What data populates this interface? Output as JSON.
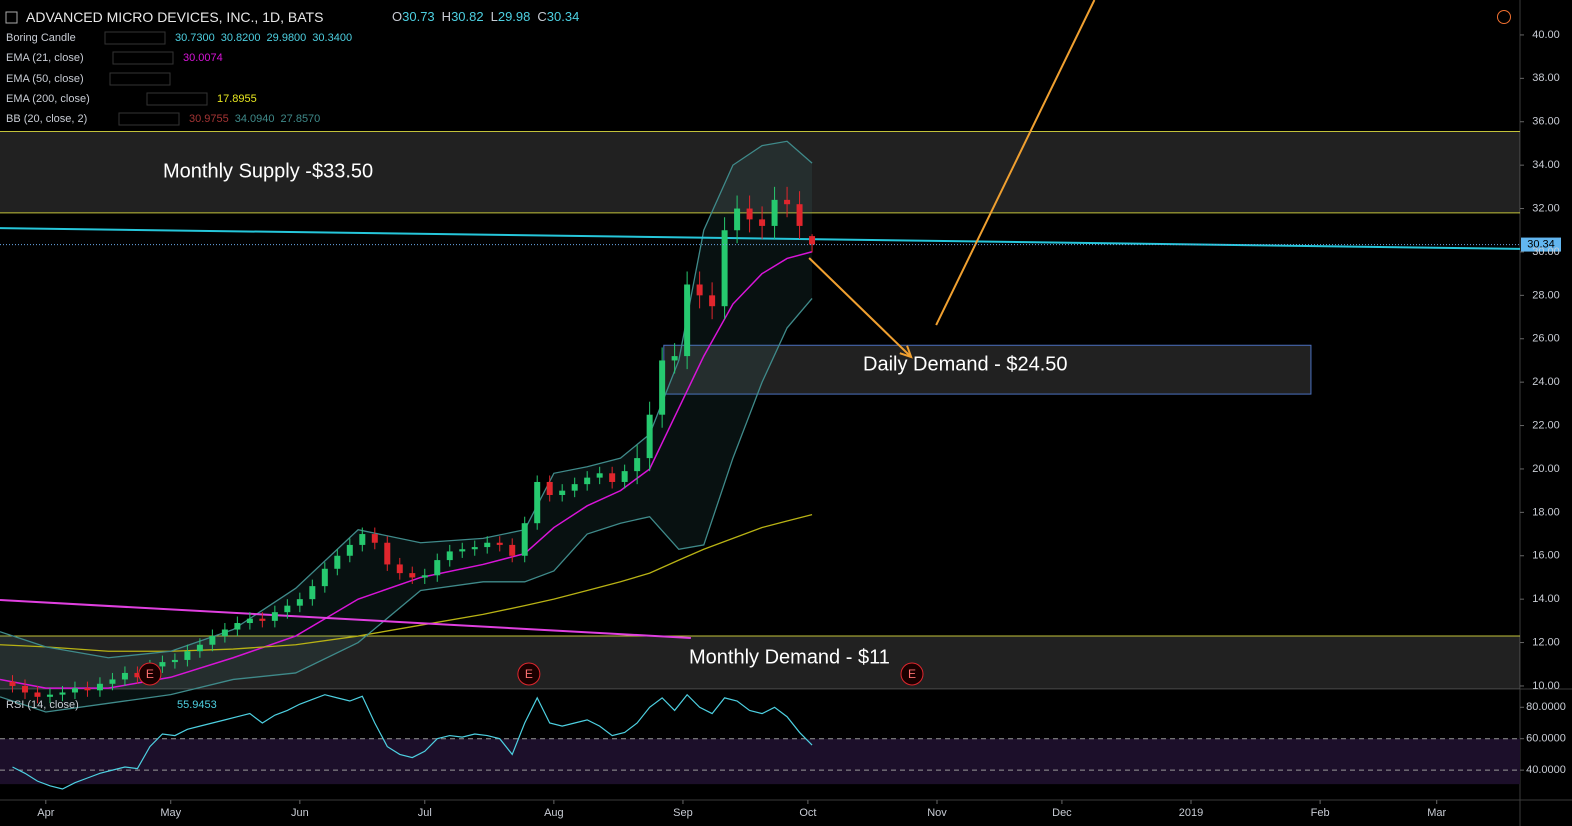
{
  "chart_data": {
    "type": "candlestick",
    "title": "ADVANCED MICRO DEVICES, INC., 1D, BATS",
    "ohlc_labels": [
      "O",
      "H",
      "L",
      "C"
    ],
    "x": [
      -8,
      -5,
      -2,
      1,
      4,
      7,
      10,
      13,
      16,
      19,
      22,
      25,
      28,
      31,
      34,
      37,
      40,
      43,
      46,
      49,
      52,
      55,
      58,
      61,
      64,
      67,
      70,
      73,
      76,
      79,
      82,
      85,
      88,
      91,
      94,
      97,
      100,
      103,
      106,
      109,
      112,
      115,
      118,
      121,
      124,
      127,
      130,
      133,
      136,
      139,
      142,
      145,
      148,
      151,
      154,
      157,
      160,
      163,
      166,
      169,
      172,
      175,
      178,
      181,
      184
    ],
    "open": [
      10.2,
      10.0,
      9.7,
      9.5,
      9.6,
      9.7,
      9.9,
      9.8,
      10.1,
      10.3,
      10.6,
      10.4,
      10.9,
      11.1,
      11.2,
      11.6,
      11.9,
      12.3,
      12.6,
      12.9,
      13.1,
      13.0,
      13.4,
      13.7,
      14.0,
      14.6,
      15.4,
      16.0,
      16.5,
      17.0,
      16.6,
      15.6,
      15.2,
      15.0,
      15.1,
      15.8,
      16.2,
      16.3,
      16.4,
      16.6,
      16.5,
      16.0,
      17.5,
      19.4,
      18.8,
      19.0,
      19.3,
      19.6,
      19.8,
      19.4,
      19.9,
      20.5,
      22.5,
      25.0,
      25.2,
      28.5,
      28.0,
      27.5,
      31.0,
      32.0,
      31.5,
      31.2,
      32.4,
      32.2,
      30.73
    ],
    "high": [
      10.5,
      10.3,
      10.0,
      9.9,
      10.0,
      10.2,
      10.2,
      10.4,
      10.6,
      10.9,
      10.9,
      11.2,
      11.4,
      11.5,
      11.9,
      12.2,
      12.6,
      12.9,
      13.2,
      13.4,
      13.4,
      13.7,
      14.0,
      14.3,
      14.9,
      15.7,
      16.3,
      16.8,
      17.3,
      17.3,
      16.9,
      15.9,
      15.5,
      15.4,
      16.1,
      16.5,
      16.6,
      16.7,
      16.9,
      16.9,
      16.8,
      17.8,
      19.7,
      19.7,
      19.3,
      19.6,
      19.9,
      20.1,
      20.1,
      20.2,
      21.1,
      23.1,
      25.6,
      25.8,
      29.1,
      29.1,
      28.6,
      31.6,
      32.6,
      32.6,
      32.1,
      33.0,
      33.0,
      32.8,
      30.82
    ],
    "low": [
      9.7,
      9.4,
      9.2,
      9.2,
      9.3,
      9.4,
      9.5,
      9.5,
      9.8,
      10.0,
      10.1,
      10.1,
      10.6,
      10.8,
      10.9,
      11.3,
      11.6,
      12.0,
      12.3,
      12.6,
      12.7,
      12.7,
      13.1,
      13.4,
      13.7,
      14.3,
      15.1,
      15.7,
      16.2,
      16.3,
      15.3,
      14.9,
      14.7,
      14.7,
      14.8,
      15.5,
      15.9,
      16.0,
      16.1,
      16.2,
      15.7,
      15.7,
      17.2,
      18.5,
      18.5,
      18.7,
      19.0,
      19.3,
      19.1,
      19.1,
      19.3,
      19.9,
      21.9,
      24.4,
      24.6,
      27.4,
      26.9,
      26.9,
      30.4,
      30.9,
      30.6,
      30.6,
      31.6,
      30.6,
      29.98
    ],
    "close": [
      10.0,
      9.7,
      9.5,
      9.6,
      9.7,
      9.9,
      9.8,
      10.1,
      10.3,
      10.6,
      10.4,
      10.9,
      11.1,
      11.2,
      11.6,
      11.9,
      12.3,
      12.6,
      12.9,
      13.1,
      13.0,
      13.4,
      13.7,
      14.0,
      14.6,
      15.4,
      16.0,
      16.5,
      17.0,
      16.6,
      15.6,
      15.2,
      15.0,
      15.1,
      15.8,
      16.2,
      16.3,
      16.4,
      16.6,
      16.5,
      16.0,
      17.5,
      19.4,
      18.8,
      19.0,
      19.3,
      19.6,
      19.8,
      19.4,
      19.9,
      20.5,
      22.5,
      25.0,
      25.2,
      28.5,
      28.0,
      27.5,
      31.0,
      32.0,
      31.5,
      31.2,
      32.4,
      32.2,
      31.2,
      30.34
    ],
    "up_color": "#26c96f",
    "down_color": "#e0262d",
    "xlim": [
      -11,
      354
    ],
    "xticks": [
      {
        "value": 0,
        "label": "Apr"
      },
      {
        "value": 30,
        "label": "May"
      },
      {
        "value": 61,
        "label": "Jun"
      },
      {
        "value": 91,
        "label": "Jul"
      },
      {
        "value": 122,
        "label": "Aug"
      },
      {
        "value": 153,
        "label": "Sep"
      },
      {
        "value": 183,
        "label": "Oct"
      },
      {
        "value": 214,
        "label": "Nov"
      },
      {
        "value": 244,
        "label": "Dec"
      },
      {
        "value": 275,
        "label": "2019"
      },
      {
        "value": 306,
        "label": "Feb"
      },
      {
        "value": 334,
        "label": "Mar"
      }
    ],
    "ylim": [
      9.86,
      41.61
    ],
    "yticks": [
      {
        "value": 10,
        "label": "10.00"
      },
      {
        "value": 12,
        "label": "12.00"
      },
      {
        "value": 14,
        "label": "14.00"
      },
      {
        "value": 16,
        "label": "16.00"
      },
      {
        "value": 18,
        "label": "18.00"
      },
      {
        "value": 20,
        "label": "20.00"
      },
      {
        "value": 22,
        "label": "22.00"
      },
      {
        "value": 24,
        "label": "24.00"
      },
      {
        "value": 26,
        "label": "26.00"
      },
      {
        "value": 28,
        "label": "28.00"
      },
      {
        "value": 30,
        "label": "30.00"
      },
      {
        "value": 32,
        "label": "32.00"
      },
      {
        "value": 34,
        "label": "34.00"
      },
      {
        "value": 36,
        "label": "36.00"
      },
      {
        "value": 38,
        "label": "38.00"
      },
      {
        "value": 40,
        "label": "40.00"
      }
    ],
    "line_x": [
      -11,
      0,
      15,
      30,
      45,
      60,
      75,
      90,
      105,
      115,
      122,
      130,
      138,
      145,
      152,
      158,
      165,
      172,
      178,
      184
    ],
    "lines": [
      {
        "name": "EMA (21, close)",
        "color": "#d814d8",
        "values": [
          10.3,
          9.9,
          9.9,
          10.4,
          11.3,
          12.3,
          14.0,
          15.0,
          15.6,
          16.1,
          17.3,
          18.3,
          19.0,
          20.0,
          22.8,
          25.2,
          27.6,
          29.0,
          29.7,
          30.0074
        ]
      },
      {
        "name": "EMA (200, close)",
        "color": "#b8b214",
        "values": [
          11.9,
          11.8,
          11.6,
          11.6,
          11.7,
          11.9,
          12.3,
          12.8,
          13.3,
          13.7,
          14.0,
          14.4,
          14.8,
          15.2,
          15.8,
          16.3,
          16.8,
          17.3,
          17.6,
          17.8955
        ]
      },
      {
        "name": "BB upper",
        "color": "#3f8a8a",
        "values": [
          12.5,
          11.8,
          11.3,
          11.6,
          12.6,
          14.5,
          17.2,
          16.6,
          16.8,
          17.2,
          19.8,
          20.1,
          20.5,
          21.6,
          25.0,
          31.0,
          34.0,
          34.9,
          35.1,
          34.094
        ]
      },
      {
        "name": "BB lower",
        "color": "#3f8a8a",
        "values": [
          9.5,
          8.8,
          9.2,
          9.6,
          10.3,
          10.6,
          12.0,
          14.4,
          14.8,
          14.8,
          15.3,
          17.0,
          17.5,
          17.8,
          16.3,
          16.5,
          20.5,
          24.0,
          26.5,
          27.857
        ]
      }
    ],
    "legend": [
      {
        "name": "Boring Candle",
        "color": "#4dd0e1",
        "value_labels": [
          "30.7300",
          "30.8200",
          "29.9800",
          "30.3400"
        ]
      },
      {
        "name": "EMA (21, close)"
      },
      {
        "name": "EMA (50, close)"
      },
      {
        "name": "EMA (200, close)"
      },
      {
        "name": "BB (20, close, 2)",
        "colors": [
          "#a33434",
          "#3f8a8a",
          "#3f8a8a"
        ],
        "value_labels": [
          "30.9755",
          "34.0940",
          "27.8570"
        ]
      }
    ],
    "zones": [
      {
        "low": 31.8,
        "high": 35.55,
        "x": [
          -11,
          354
        ],
        "border": "#c2c23a",
        "label": "Monthly Supply -$33.50"
      },
      {
        "low": 9.86,
        "high": 12.3,
        "x": [
          -11,
          354
        ],
        "border": "#c2c23a",
        "label": "Monthly Demand - $11"
      },
      {
        "low": 23.45,
        "high": 25.7,
        "x": [
          148.4,
          303.8
        ],
        "border": "#4a70c0",
        "label": "Daily Demand - $24.50"
      }
    ],
    "trendlines": [
      {
        "color": "#26c6da",
        "points": [
          [
            -11,
            31.1
          ],
          [
            354,
            30.14
          ]
        ]
      },
      {
        "color": "#e040e0",
        "points": [
          [
            -11,
            13.96
          ],
          [
            154.9,
            12.21
          ]
        ]
      },
      {
        "color": "#f0a030",
        "arrow": true,
        "points": [
          [
            183.3,
            29.72
          ],
          [
            207.8,
            25.16
          ]
        ]
      },
      {
        "color": "#f0a030",
        "points": [
          [
            213.8,
            26.63
          ],
          [
            251.8,
            41.61
          ]
        ]
      }
    ],
    "earnings": {
      "label": "E",
      "x": [
        25,
        116,
        208
      ]
    },
    "rsi": {
      "name": "RSI (14, close)",
      "color": "#4dd0e1",
      "ylim": [
        21,
        91
      ],
      "yticks": [
        {
          "value": 40,
          "label": "40.0000"
        },
        {
          "value": 60,
          "label": "60.0000"
        },
        {
          "value": 80,
          "label": "80.0000"
        }
      ],
      "values": [
        42,
        38,
        33,
        30,
        28,
        32,
        35,
        38,
        40,
        42,
        41,
        55,
        63,
        62,
        66,
        68,
        70,
        72,
        74,
        76,
        70,
        75,
        78,
        82,
        85,
        88,
        86,
        84,
        87,
        70,
        55,
        50,
        48,
        52,
        60,
        62,
        61,
        63,
        62,
        60,
        50,
        70,
        86,
        70,
        68,
        70,
        72,
        68,
        62,
        64,
        70,
        80,
        86,
        78,
        88,
        80,
        76,
        86,
        84,
        78,
        76,
        80,
        74,
        64,
        55.9453
      ]
    }
  }
}
